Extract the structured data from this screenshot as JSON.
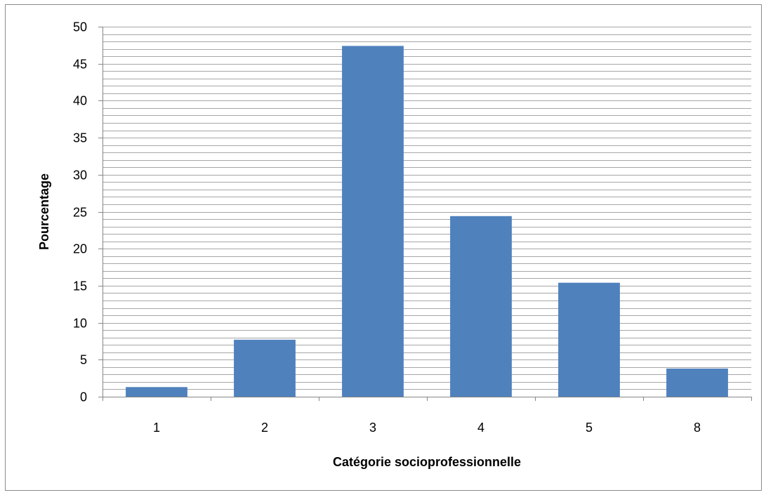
{
  "chart_data": {
    "type": "bar",
    "title": "",
    "xlabel": "Catégorie socioprofessionnelle",
    "ylabel": "Pourcentage",
    "categories": [
      "1",
      "2",
      "3",
      "4",
      "5",
      "8"
    ],
    "values": [
      1.3,
      7.7,
      47.4,
      24.4,
      15.4,
      3.8
    ],
    "ylim": [
      0,
      50
    ],
    "yticks": [
      0,
      5,
      10,
      15,
      20,
      25,
      30,
      35,
      40,
      45,
      50
    ],
    "minor_grid_step": 1,
    "grid": true,
    "legend": "none",
    "bar_color": "#4f81bd",
    "grid_color": "#a6a6a6"
  }
}
